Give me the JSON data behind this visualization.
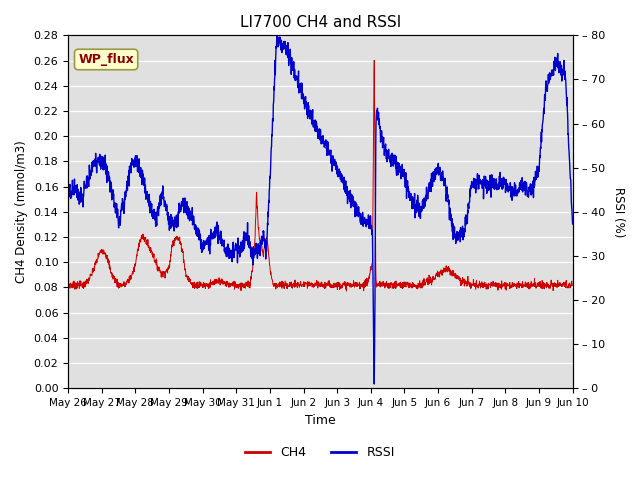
{
  "title": "LI7700 CH4 and RSSI",
  "xlabel": "Time",
  "ylabel_left": "CH4 Density (mmol/m3)",
  "ylabel_right": "RSSI (%)",
  "ylim_left": [
    0.0,
    0.28
  ],
  "ylim_right": [
    0,
    80
  ],
  "yticks_left": [
    0.0,
    0.02,
    0.04,
    0.06,
    0.08,
    0.1,
    0.12,
    0.14,
    0.16,
    0.18,
    0.2,
    0.22,
    0.24,
    0.26,
    0.28
  ],
  "yticks_right": [
    0,
    10,
    20,
    30,
    40,
    50,
    60,
    70,
    80
  ],
  "ch4_color": "#cc0000",
  "rssi_color": "#0000cc",
  "background_color": "#e0e0e0",
  "label_box_facecolor": "#ffffcc",
  "label_box_edgecolor": "#999944",
  "label_text": "WP_flux",
  "label_text_color": "#880000",
  "xtick_labels": [
    "May 26",
    "May 27",
    "May 28",
    "May 29",
    "May 30",
    "May 31",
    "Jun 1",
    "Jun 2",
    "Jun 3",
    "Jun 4",
    "Jun 5",
    "Jun 6",
    "Jun 7",
    "Jun 8",
    "Jun 9",
    "Jun 10"
  ],
  "rssi_keypoints_x": [
    0,
    0.2,
    0.35,
    0.5,
    0.7,
    0.85,
    1.0,
    1.2,
    1.5,
    1.7,
    1.85,
    2.0,
    2.2,
    2.4,
    2.6,
    2.8,
    3.0,
    3.2,
    3.4,
    3.6,
    3.8,
    4.0,
    4.2,
    4.4,
    4.6,
    4.8,
    5.0,
    5.1,
    5.2,
    5.3,
    5.5,
    5.6,
    5.7,
    5.8,
    5.9,
    6.0,
    6.2,
    6.5,
    7.0,
    7.2,
    7.5,
    7.8,
    8.0,
    8.2,
    8.5,
    8.7,
    9.0,
    9.05,
    9.08,
    9.1,
    9.12,
    9.15,
    9.2,
    9.3,
    9.4,
    9.5,
    9.6,
    9.7,
    9.8,
    10.0,
    10.2,
    10.5,
    10.7,
    11.0,
    11.2,
    11.5,
    11.8,
    12.0,
    12.2,
    12.5,
    12.8,
    13.0,
    13.2,
    13.5,
    13.8,
    14.0,
    14.2,
    14.5,
    14.8,
    15.0
  ],
  "rssi_keypoints_y": [
    44,
    46,
    43,
    45,
    50,
    51,
    52,
    48,
    38,
    43,
    50,
    52,
    48,
    42,
    38,
    44,
    38,
    37,
    42,
    40,
    36,
    32,
    33,
    36,
    33,
    30,
    32,
    31,
    33,
    35,
    30,
    32,
    31,
    35,
    31,
    48,
    79,
    77,
    66,
    62,
    57,
    53,
    50,
    46,
    42,
    38,
    38,
    35,
    15,
    0,
    15,
    60,
    62,
    58,
    55,
    53,
    52,
    51,
    50,
    48,
    43,
    40,
    45,
    50,
    46,
    34,
    36,
    46,
    47,
    46,
    46,
    47,
    44,
    46,
    45,
    50,
    68,
    74,
    70,
    36
  ],
  "ch4_keypoints_x": [
    0,
    0.5,
    0.7,
    0.9,
    1.0,
    1.1,
    1.2,
    1.3,
    1.5,
    1.7,
    1.9,
    2.0,
    2.1,
    2.2,
    2.3,
    2.4,
    2.5,
    2.6,
    2.8,
    3.0,
    3.1,
    3.2,
    3.3,
    3.4,
    3.5,
    3.7,
    4.0,
    4.2,
    4.5,
    4.8,
    5.0,
    5.2,
    5.4,
    5.45,
    5.5,
    5.55,
    5.6,
    5.65,
    5.7,
    5.75,
    5.8,
    5.85,
    5.9,
    5.95,
    6.0,
    6.1,
    6.5,
    7.0,
    7.5,
    8.0,
    8.5,
    8.8,
    8.9,
    8.95,
    9.0,
    9.05,
    9.1,
    9.12,
    9.15,
    9.18,
    9.2,
    9.3,
    9.4,
    9.5,
    10.0,
    10.5,
    10.7,
    10.9,
    11.0,
    11.1,
    11.3,
    11.5,
    11.7,
    12.0,
    12.5,
    13.0,
    13.5,
    14.0,
    14.5,
    15.0
  ],
  "ch4_keypoints_y": [
    0.082,
    0.082,
    0.09,
    0.105,
    0.11,
    0.108,
    0.1,
    0.09,
    0.082,
    0.082,
    0.09,
    0.098,
    0.115,
    0.12,
    0.118,
    0.112,
    0.108,
    0.1,
    0.09,
    0.095,
    0.115,
    0.12,
    0.118,
    0.11,
    0.09,
    0.082,
    0.082,
    0.082,
    0.085,
    0.082,
    0.082,
    0.082,
    0.082,
    0.09,
    0.1,
    0.115,
    0.155,
    0.13,
    0.115,
    0.115,
    0.105,
    0.115,
    0.12,
    0.11,
    0.095,
    0.082,
    0.082,
    0.082,
    0.082,
    0.082,
    0.082,
    0.082,
    0.085,
    0.088,
    0.095,
    0.1,
    0.265,
    0.2,
    0.085,
    0.082,
    0.082,
    0.082,
    0.082,
    0.082,
    0.082,
    0.082,
    0.085,
    0.087,
    0.09,
    0.092,
    0.095,
    0.09,
    0.085,
    0.082,
    0.082,
    0.082,
    0.082,
    0.082,
    0.082,
    0.082
  ]
}
